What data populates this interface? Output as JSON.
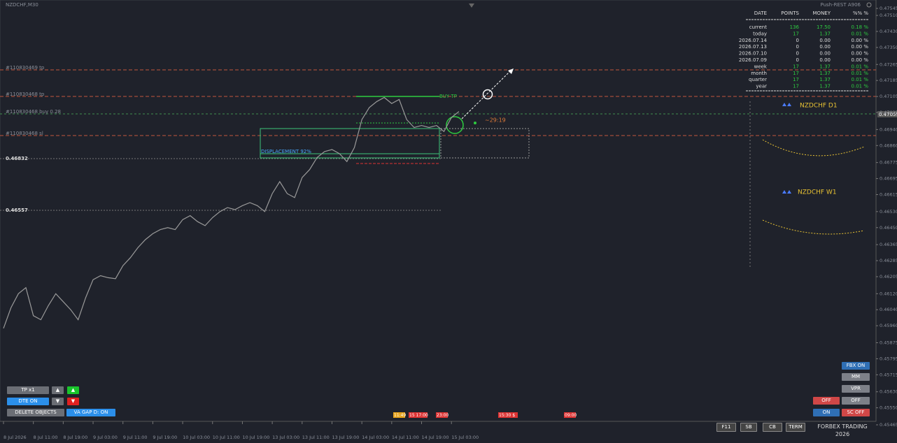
{
  "window": {
    "title": "NZDCHF,M30",
    "server": "Push-REST A906"
  },
  "chart_data": {
    "type": "line",
    "color": "#9a9a9a",
    "categories": [
      "8 Jul 2026",
      null,
      null,
      null,
      "8 Jul 11:00",
      null,
      null,
      null,
      "8 Jul 19:00",
      null,
      null,
      null,
      "9 Jul 03:00",
      null,
      null,
      null,
      "9 Jul 11:00",
      null,
      null,
      null,
      "9 Jul 19:00",
      null,
      null,
      null,
      "10 Jul 03:00",
      null,
      null,
      null,
      "10 Jul 11:00",
      null,
      null,
      null,
      "10 Jul 19:00",
      null,
      null,
      null,
      "13 Jul 03:00",
      null,
      null,
      null,
      "13 Jul 11:00",
      null,
      null,
      null,
      "13 Jul 19:00",
      null,
      null,
      null,
      "14 Jul 03:00",
      null,
      null,
      null,
      "14 Jul 11:00",
      null,
      null,
      null,
      "14 Jul 19:00",
      null,
      null,
      null,
      "15 Jul 03:00",
      null
    ],
    "values": [
      0.45947,
      0.4605,
      0.4612,
      0.4615,
      0.4601,
      0.4599,
      0.4606,
      0.4612,
      0.4608,
      0.4604,
      0.4599,
      0.461,
      0.4619,
      0.4621,
      0.462,
      0.46195,
      0.4626,
      0.463,
      0.4635,
      0.4639,
      0.4642,
      0.4644,
      0.4645,
      0.4644,
      0.4649,
      0.4651,
      0.4648,
      0.4646,
      0.465,
      0.4653,
      0.4655,
      0.4654,
      0.4656,
      0.46575,
      0.4656,
      0.4653,
      0.4662,
      0.4668,
      0.4662,
      0.466,
      0.467,
      0.4674,
      0.468,
      0.4683,
      0.4684,
      0.4682,
      0.4678,
      0.4685,
      0.4699,
      0.4705,
      0.4708,
      0.471,
      0.4707,
      0.4709,
      0.4699,
      0.4695,
      0.4696,
      0.4695,
      0.4696,
      0.4693,
      0.47,
      0.4703
    ],
    "ylim": [
      0.45451,
      0.47587
    ],
    "yticks": [
      0.47545,
      {
        "value": 0.4751,
        "label": "0.47510"
      },
      {
        "value": 0.4743,
        "label": "0.47430"
      },
      {
        "value": 0.4735,
        "label": "0.47350"
      },
      0.47265,
      0.47185,
      0.47105,
      0.47025,
      {
        "value": 0.4694,
        "label": "0.46940"
      },
      {
        "value": 0.4686,
        "label": "0.46860"
      },
      0.46775,
      0.46695,
      0.46615,
      {
        "value": 0.4653,
        "label": "0.46530"
      },
      {
        "value": 0.4645,
        "label": "0.46450"
      },
      0.46365,
      0.46285,
      0.46205,
      {
        "value": 0.4612,
        "label": "0.46120"
      },
      {
        "value": 0.4604,
        "label": "0.46040"
      },
      {
        "value": 0.4596,
        "label": "0.45960"
      },
      0.45875,
      0.45795,
      0.45715,
      {
        "value": 0.4563,
        "label": "0.45630"
      },
      {
        "value": 0.4555,
        "label": "0.45550"
      },
      0.45465
    ],
    "current_price_label": "0.47059"
  },
  "annotations": {
    "tp1": "#110830469 tp",
    "tp2": "#110830468 tp",
    "buy": "#110830468 buy 0.28",
    "sl": "#110830468 sl",
    "level1": "0.46832",
    "level2": "0.46557",
    "buy_tp": "BUY TP",
    "displacement": "DISPLACEMENT 92%",
    "timer": "~29:19"
  },
  "table": {
    "header": [
      "DATE",
      "POINTS",
      "MONEY",
      "%% %"
    ],
    "rows": [
      [
        "current",
        "136",
        "17.50",
        "0.18 %"
      ],
      [
        "today",
        "17",
        "1.37",
        "0.01 %"
      ],
      [
        "2026.07.14",
        "0",
        "0.00",
        "0.00 %"
      ],
      [
        "2026.07.13",
        "0",
        "0.00",
        "0.00 %"
      ],
      [
        "2026.07.10",
        "0",
        "0.00",
        "0.00 %"
      ],
      [
        "2026.07.09",
        "0",
        "0.00",
        "0.00 %"
      ],
      [
        "week",
        "17",
        "1.37",
        "0.01 %"
      ],
      [
        "month",
        "17",
        "1.37",
        "0.01 %"
      ],
      [
        "quarter",
        "17",
        "1.37",
        "0.01 %"
      ],
      [
        "year",
        "17",
        "1.37",
        "0.01 %"
      ]
    ]
  },
  "mini_charts": [
    "NZDCHF D1",
    "NZDCHF W1"
  ],
  "session_markers": [
    "11:49",
    "15 17:00",
    "23:00",
    "15:30 $",
    "09:00"
  ],
  "buttons_left": {
    "tp": "TP x1",
    "dte": "DTE ON",
    "delete": "DELETE OBJECTS",
    "vagap": "VA GAP D: ON"
  },
  "buttons_right": {
    "fbx": "FBX ON",
    "mm": "MM",
    "vpr": "VPR",
    "off1": "OFF",
    "off2": "OFF",
    "on": "ON",
    "sc": "SC OFF"
  },
  "footer": {
    "f11": "F11",
    "sb": "SB",
    "cb": "CB",
    "term": "TERM",
    "brand": "FORBEX TRADING 2026"
  }
}
